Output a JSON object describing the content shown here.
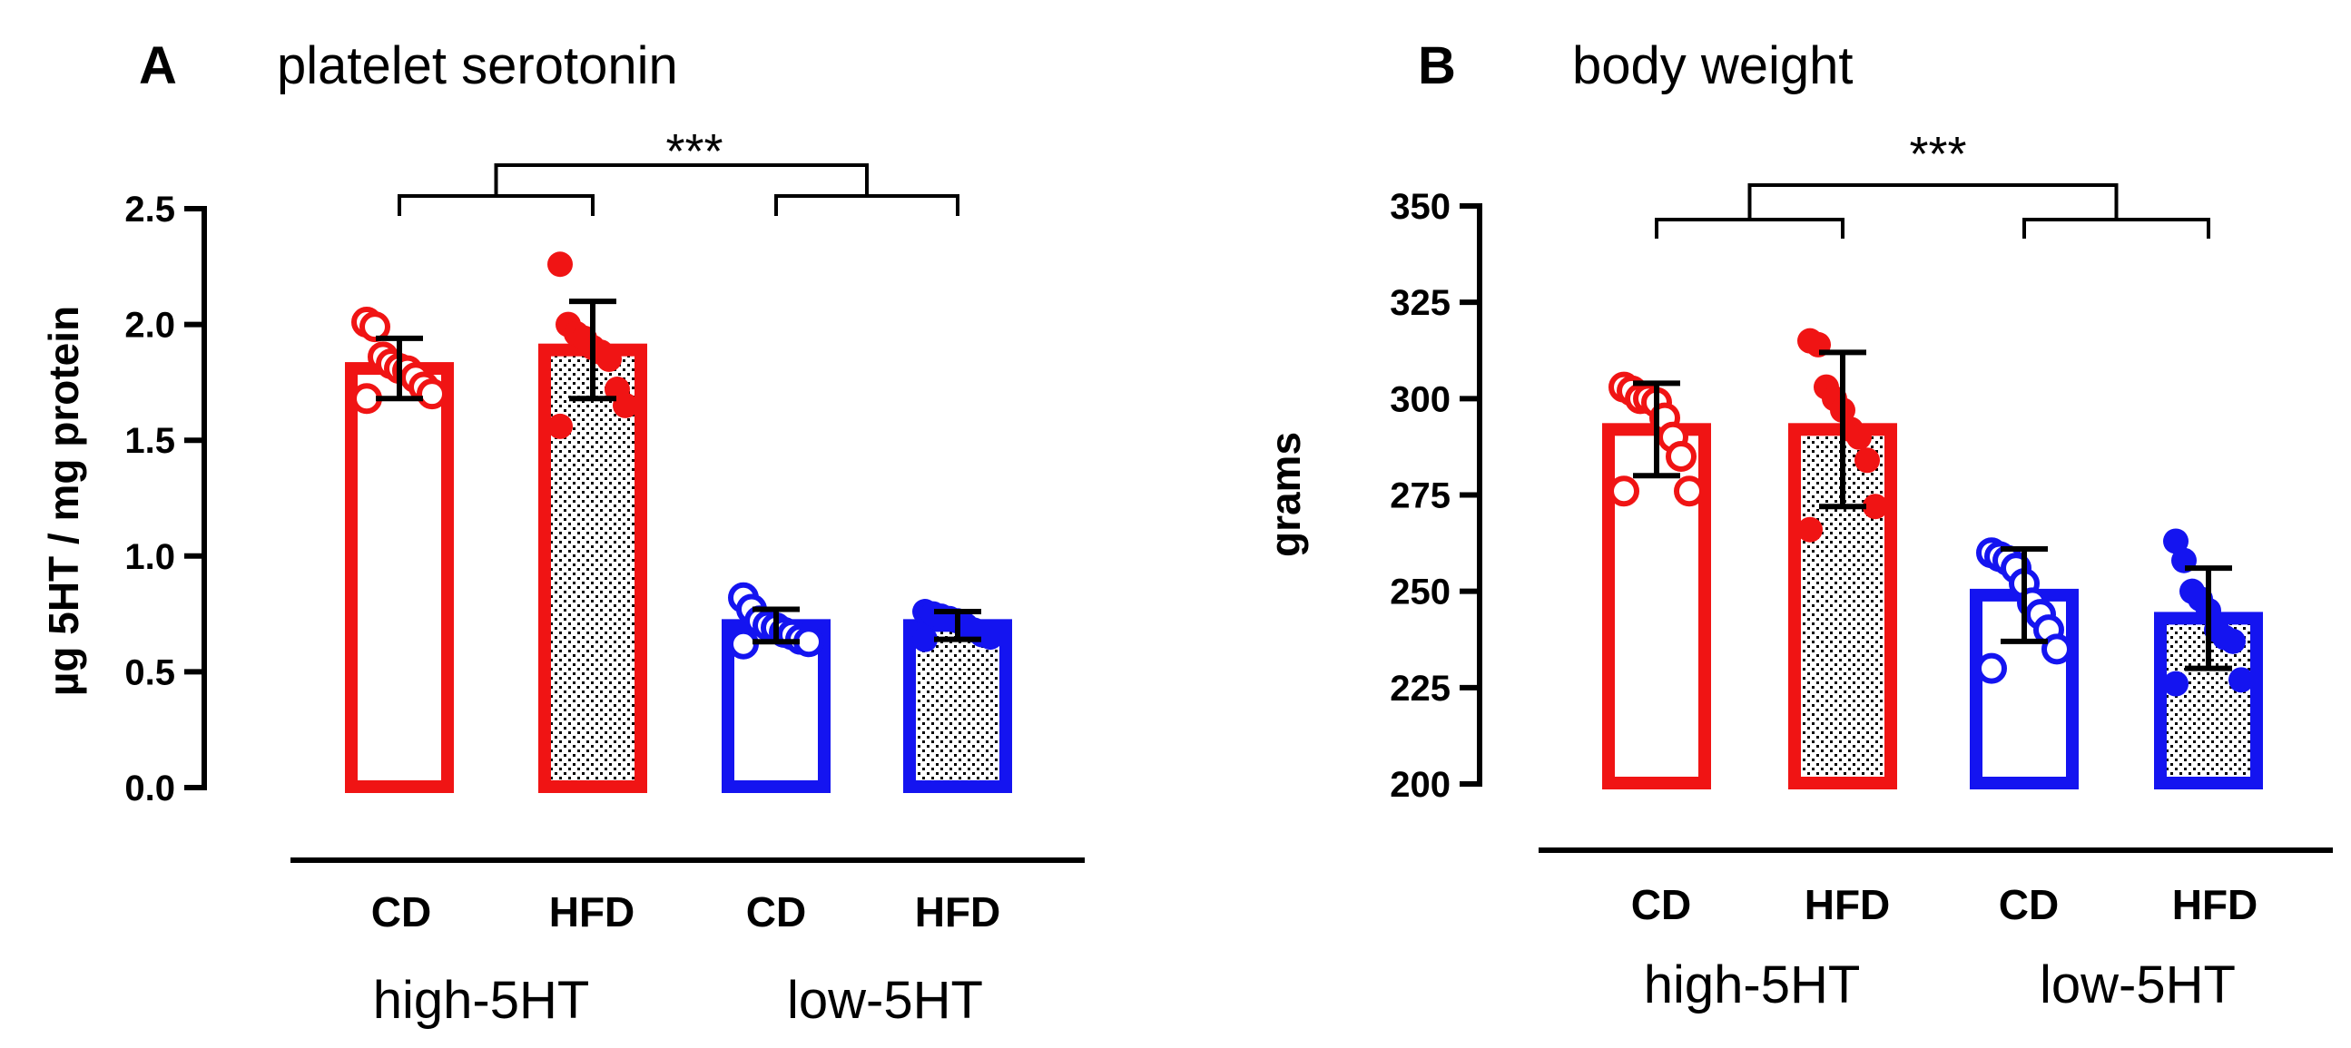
{
  "colors": {
    "red": "#f01414",
    "blue": "#1414f0",
    "black": "#000000"
  },
  "chart_data": [
    {
      "type": "bar",
      "panel_letter": "A",
      "title": "platelet serotonin",
      "ylabel": "µg 5HT / mg protein",
      "xlabel": "",
      "ylim": [
        0,
        2.5
      ],
      "yticks": [
        0.0,
        0.5,
        1.0,
        1.5,
        2.0,
        2.5
      ],
      "ytick_labels": [
        "0.0",
        "0.5",
        "1.0",
        "1.5",
        "2.0",
        "2.5"
      ],
      "categories": [
        "CD",
        "HFD",
        "CD",
        "HFD"
      ],
      "groups": [
        {
          "label": "high-5HT",
          "categories": [
            0,
            1
          ]
        },
        {
          "label": "low-5HT",
          "categories": [
            2,
            3
          ]
        }
      ],
      "significance": "***",
      "series": [
        {
          "name": "high-5HT CD",
          "category": "CD",
          "color": "red",
          "fill": "open",
          "mean": 1.81,
          "sd": 0.13,
          "points": [
            2.01,
            1.99,
            1.86,
            1.83,
            1.81,
            1.8,
            1.77,
            1.73,
            1.7,
            1.68
          ]
        },
        {
          "name": "high-5HT HFD",
          "category": "HFD",
          "color": "red",
          "fill": "dotted",
          "mean": 1.89,
          "sd": 0.21,
          "points": [
            2.26,
            2.0,
            1.96,
            1.94,
            1.9,
            1.88,
            1.85,
            1.72,
            1.65,
            1.56
          ]
        },
        {
          "name": "low-5HT CD",
          "category": "CD",
          "color": "blue",
          "fill": "open",
          "mean": 0.7,
          "sd": 0.07,
          "points": [
            0.82,
            0.77,
            0.72,
            0.7,
            0.69,
            0.67,
            0.66,
            0.64,
            0.63,
            0.62
          ]
        },
        {
          "name": "low-5HT HFD",
          "category": "HFD",
          "color": "blue",
          "fill": "dotted",
          "mean": 0.7,
          "sd": 0.06,
          "points": [
            0.76,
            0.75,
            0.74,
            0.73,
            0.72,
            0.7,
            0.68,
            0.66,
            0.65,
            0.64
          ]
        }
      ]
    },
    {
      "type": "bar",
      "panel_letter": "B",
      "title": "body weight",
      "ylabel": "grams",
      "xlabel": "",
      "ylim": [
        200,
        350
      ],
      "yticks": [
        200,
        225,
        250,
        275,
        300,
        325,
        350
      ],
      "ytick_labels": [
        "200",
        "225",
        "250",
        "275",
        "300",
        "325",
        "350"
      ],
      "categories": [
        "CD",
        "HFD",
        "CD",
        "HFD"
      ],
      "groups": [
        {
          "label": "high-5HT",
          "categories": [
            0,
            1
          ]
        },
        {
          "label": "low-5HT",
          "categories": [
            2,
            3
          ]
        }
      ],
      "significance": "***",
      "series": [
        {
          "name": "high-5HT CD",
          "category": "CD",
          "color": "red",
          "fill": "open",
          "mean": 292,
          "sd": 12,
          "points": [
            303,
            302,
            300,
            300,
            299,
            295,
            290,
            285,
            276,
            276
          ]
        },
        {
          "name": "high-5HT HFD",
          "category": "HFD",
          "color": "red",
          "fill": "dotted",
          "mean": 292,
          "sd": 20,
          "points": [
            315,
            314,
            303,
            300,
            297,
            292,
            290,
            284,
            272,
            266
          ]
        },
        {
          "name": "low-5HT CD",
          "category": "CD",
          "color": "blue",
          "fill": "open",
          "mean": 249,
          "sd": 12,
          "points": [
            260,
            259,
            258,
            256,
            252,
            247,
            244,
            240,
            235,
            230
          ]
        },
        {
          "name": "low-5HT HFD",
          "category": "HFD",
          "color": "blue",
          "fill": "dotted",
          "mean": 243,
          "sd": 13,
          "points": [
            263,
            258,
            250,
            248,
            245,
            240,
            238,
            237,
            227,
            226
          ]
        }
      ]
    }
  ]
}
